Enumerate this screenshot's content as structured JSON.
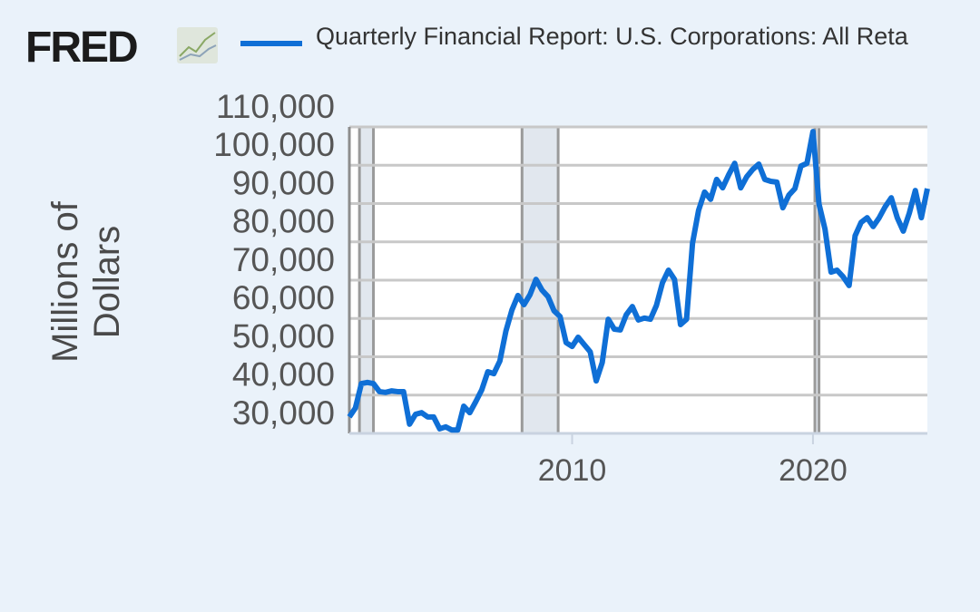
{
  "logo": "FRED",
  "chart_data": {
    "type": "line",
    "y_label": "Millions of Dollars",
    "x": [
      2000.75,
      2001,
      2001.25,
      2001.5,
      2001.75,
      2002,
      2002.25,
      2002.5,
      2002.75,
      2003,
      2003.25,
      2003.5,
      2003.75,
      2004,
      2004.25,
      2004.5,
      2004.75,
      2005,
      2005.25,
      2005.5,
      2005.75,
      2006,
      2006.25,
      2006.5,
      2006.75,
      2007,
      2007.25,
      2007.5,
      2007.75,
      2008,
      2008.25,
      2008.5,
      2008.75,
      2009,
      2009.25,
      2009.5,
      2009.75,
      2010,
      2010.25,
      2010.5,
      2010.75,
      2011,
      2011.25,
      2011.5,
      2011.75,
      2012,
      2012.25,
      2012.5,
      2012.75,
      2013,
      2013.25,
      2013.5,
      2013.75,
      2014,
      2014.25,
      2014.5,
      2014.75,
      2015,
      2015.25,
      2015.5,
      2015.75,
      2016,
      2016.25,
      2016.5,
      2016.75,
      2017,
      2017.25,
      2017.5,
      2017.75,
      2018,
      2018.25,
      2018.5,
      2018.75,
      2019,
      2019.25,
      2019.5,
      2019.75,
      2020,
      2020.25,
      2020.5,
      2020.75,
      2021,
      2021.25,
      2021.5,
      2021.75,
      2022,
      2022.25,
      2022.5,
      2022.75,
      2023,
      2023.25,
      2023.5,
      2023.75,
      2024,
      2024.25,
      2024.5,
      2024.75
    ],
    "series": [
      {
        "name": "Quarterly Financial Report: U.S. Corporations: All Reta",
        "color": "#0f6fd6",
        "values": [
          34300,
          36600,
          43000,
          43300,
          43000,
          40900,
          40700,
          41100,
          40900,
          40900,
          32400,
          35000,
          35400,
          34300,
          34300,
          31200,
          31700,
          30900,
          30900,
          37100,
          35400,
          38300,
          41400,
          46100,
          45600,
          48900,
          56700,
          62200,
          66000,
          63600,
          66200,
          70200,
          67400,
          65700,
          62000,
          60500,
          53700,
          52700,
          55100,
          53200,
          51300,
          43700,
          48500,
          59800,
          57200,
          57000,
          61000,
          63100,
          59600,
          60100,
          59800,
          63400,
          69300,
          72600,
          70200,
          58400,
          59800,
          79700,
          88200,
          93000,
          91100,
          96300,
          94100,
          97500,
          100500,
          94100,
          97000,
          98900,
          100300,
          96300,
          95800,
          95600,
          88900,
          92200,
          93900,
          99800,
          100500,
          108800,
          89900,
          83300,
          72100,
          72600,
          70900,
          68600,
          81600,
          85100,
          86300,
          84000,
          86300,
          89200,
          91500,
          86300,
          82800,
          87500,
          93400,
          86300,
          93900
        ]
      }
    ],
    "recessions": [
      [
        2001.17,
        2001.75
      ],
      [
        2007.92,
        2009.42
      ],
      [
        2020.08,
        2020.25
      ]
    ],
    "xlim": [
      2000.75,
      2024.75
    ],
    "xticks": [
      2010,
      2020
    ],
    "ylim": [
      30000,
      110000
    ],
    "yticks": [
      {
        "value": 30000,
        "label": "30,000"
      },
      {
        "value": 40000,
        "label": "40,000"
      },
      {
        "value": 50000,
        "label": "50,000"
      },
      {
        "value": 60000,
        "label": "60,000"
      },
      {
        "value": 70000,
        "label": "70,000"
      },
      {
        "value": 80000,
        "label": "80,000"
      },
      {
        "value": 90000,
        "label": "90,000"
      },
      {
        "value": 100000,
        "label": "100,000"
      },
      {
        "value": 110000,
        "label": "110,000"
      }
    ],
    "grid": true
  }
}
